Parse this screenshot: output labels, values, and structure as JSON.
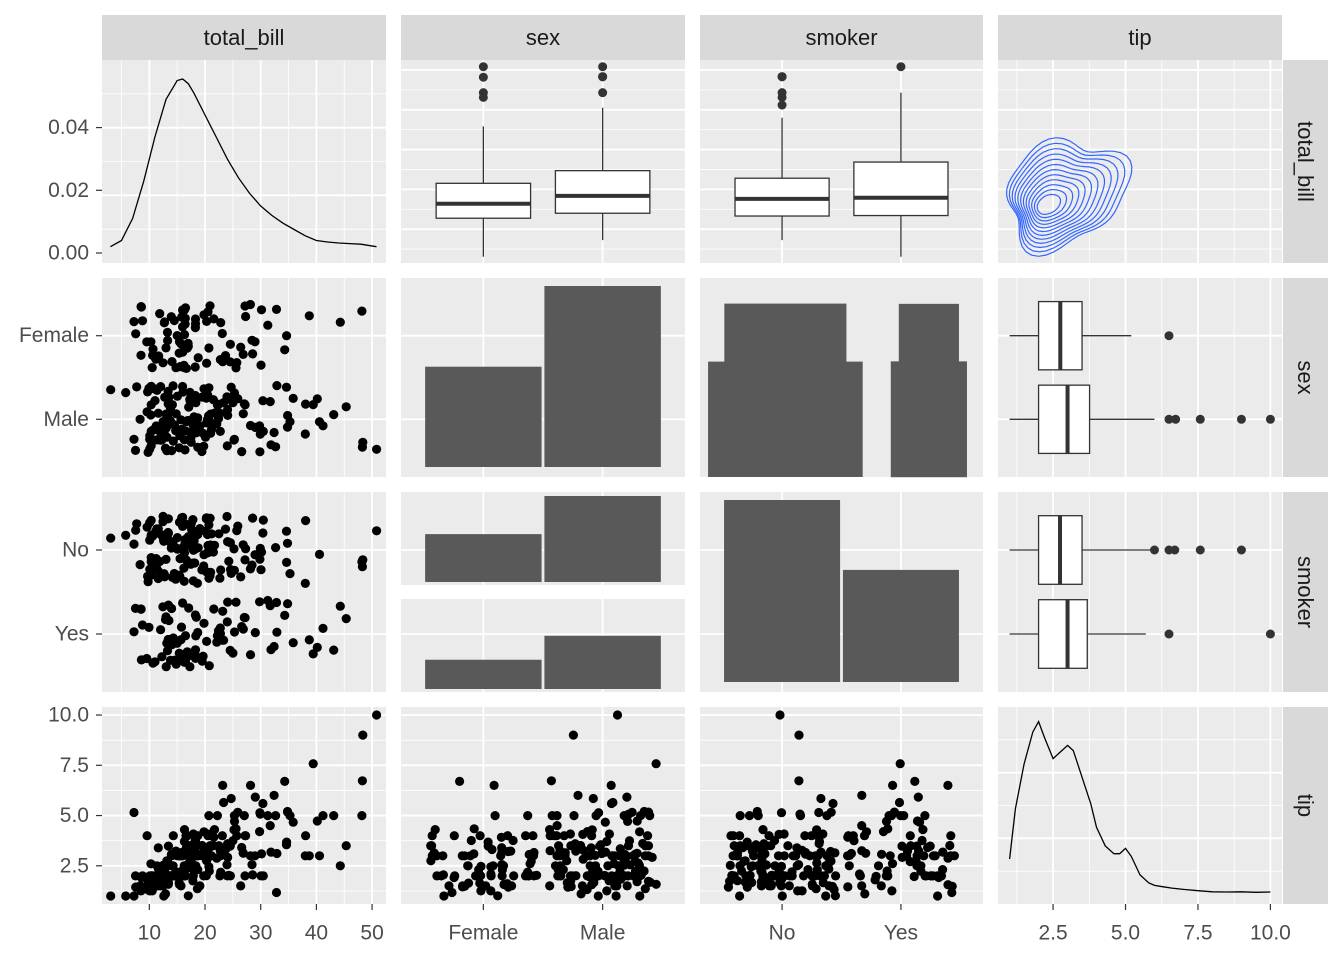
{
  "chart_data": {
    "type": "scatter",
    "title": "",
    "variables": [
      "total_bill",
      "sex",
      "smoker",
      "tip"
    ],
    "columns": [
      "total_bill",
      "sex",
      "smoker",
      "tip"
    ],
    "rows": [
      "total_bill",
      "sex",
      "smoker",
      "tip"
    ],
    "colors": {
      "panel_bg": "#ebebeb",
      "grid_major": "#ffffff",
      "strip_bg": "#d9d9d9",
      "bar_fill": "#595959",
      "point": "#000000",
      "contour": "#3366ff",
      "box_fill": "#ffffff",
      "line": "#000000"
    },
    "axes": {
      "total_bill": {
        "range": [
          1.5,
          52.5
        ],
        "ticks": [
          10,
          20,
          30,
          40,
          50
        ],
        "tick_labels": [
          "10",
          "20",
          "30",
          "40",
          "50"
        ]
      },
      "tip": {
        "range": [
          0.6,
          10.4
        ],
        "ticks": [
          2.5,
          5.0,
          7.5,
          10.0
        ],
        "tick_labels": [
          "2.5",
          "5.0",
          "7.5",
          "10.0"
        ]
      },
      "sex": {
        "categories": [
          "Female",
          "Male"
        ]
      },
      "smoker": {
        "categories": [
          "No",
          "Yes"
        ]
      },
      "density_y": {
        "ticks": [
          0.0,
          0.02,
          0.04
        ],
        "tick_labels": [
          "0.00",
          "0.02",
          "0.04"
        ]
      }
    },
    "panels": {
      "total_bill_density": {
        "type": "line",
        "x": [
          3,
          5,
          7,
          9,
          11,
          13,
          15,
          16,
          17,
          18,
          20,
          22,
          24,
          26,
          28,
          30,
          32,
          34,
          36,
          38,
          40,
          42,
          44,
          46,
          48,
          50.8
        ],
        "y": [
          0.002,
          0.004,
          0.011,
          0.023,
          0.037,
          0.049,
          0.055,
          0.0555,
          0.054,
          0.051,
          0.044,
          0.037,
          0.03,
          0.024,
          0.019,
          0.015,
          0.012,
          0.0095,
          0.0075,
          0.0055,
          0.004,
          0.0035,
          0.0032,
          0.003,
          0.0028,
          0.002
        ]
      },
      "total_bill_by_sex_box": {
        "type": "box",
        "groups": [
          {
            "name": "Female",
            "min": 3.07,
            "q1": 12.75,
            "median": 16.4,
            "q3": 21.52,
            "max": 35.83,
            "outliers": [
              44.3,
              43.11,
              48.17,
              50.81
            ]
          },
          {
            "name": "Male",
            "min": 7.25,
            "q1": 14.0,
            "median": 18.35,
            "q3": 24.7,
            "max": 40.5,
            "outliers": [
              48.27,
              48.33,
              50.81,
              44.3
            ]
          }
        ]
      },
      "total_bill_by_smoker_box": {
        "type": "box",
        "groups": [
          {
            "name": "No",
            "min": 7.25,
            "q1": 13.3,
            "median": 17.6,
            "q3": 22.8,
            "max": 38.0,
            "outliers": [
              43.11,
              41.19,
              44.3,
              48.27,
              48.33
            ]
          },
          {
            "name": "Yes",
            "min": 3.07,
            "q1": 13.42,
            "median": 17.9,
            "q3": 26.86,
            "max": 44.3,
            "outliers": [
              50.81
            ]
          }
        ]
      },
      "tip_by_sex_box": {
        "type": "box",
        "groups": [
          {
            "name": "Female",
            "min": 1.0,
            "q1": 2.0,
            "median": 2.75,
            "q3": 3.5,
            "max": 5.2,
            "outliers": [
              6.5
            ]
          },
          {
            "name": "Male",
            "min": 1.0,
            "q1": 2.0,
            "median": 3.0,
            "q3": 3.76,
            "max": 6.0,
            "outliers": [
              6.5,
              6.73,
              7.58,
              9.0,
              10.0
            ]
          }
        ]
      },
      "tip_by_smoker_box": {
        "type": "box",
        "groups": [
          {
            "name": "No",
            "min": 1.0,
            "q1": 2.0,
            "median": 2.74,
            "q3": 3.5,
            "max": 5.9,
            "outliers": [
              6.0,
              6.5,
              6.7,
              7.58,
              9.0
            ]
          },
          {
            "name": "Yes",
            "min": 1.0,
            "q1": 2.0,
            "median": 3.0,
            "q3": 3.68,
            "max": 5.7,
            "outliers": [
              6.5,
              10.0
            ]
          }
        ]
      },
      "sex_counts": {
        "type": "bar",
        "categories": [
          "Female",
          "Male"
        ],
        "values": [
          87,
          157
        ]
      },
      "smoker_counts": {
        "type": "bar",
        "categories": [
          "No",
          "Yes"
        ],
        "values": [
          151,
          93
        ]
      },
      "sex_smoker_counts": {
        "type": "bar",
        "cells": [
          {
            "sex": "Female",
            "smoker": "No",
            "value": 54
          },
          {
            "sex": "Male",
            "smoker": "No",
            "value": 97
          },
          {
            "sex": "Female",
            "smoker": "Yes",
            "value": 33
          },
          {
            "sex": "Male",
            "smoker": "Yes",
            "value": 60
          }
        ]
      },
      "tip_density": {
        "type": "line",
        "x": [
          1.0,
          1.2,
          1.5,
          1.8,
          2.0,
          2.2,
          2.5,
          2.8,
          3.0,
          3.2,
          3.5,
          3.8,
          4.0,
          4.3,
          4.6,
          4.8,
          5.0,
          5.2,
          5.5,
          5.8,
          6.0,
          6.3,
          6.6,
          7.0,
          7.5,
          8.0,
          8.5,
          9.0,
          9.5,
          10.0
        ],
        "y": [
          0.14,
          0.33,
          0.5,
          0.62,
          0.66,
          0.6,
          0.52,
          0.55,
          0.57,
          0.55,
          0.45,
          0.35,
          0.26,
          0.19,
          0.16,
          0.16,
          0.18,
          0.15,
          0.08,
          0.05,
          0.04,
          0.035,
          0.03,
          0.025,
          0.02,
          0.016,
          0.015,
          0.016,
          0.014,
          0.015
        ]
      },
      "tip_vs_total_bill_contour": {
        "type": "contour",
        "center": [
          16.0,
          2.6
        ],
        "levels": 12
      },
      "scatter": {
        "total_bill": [
          16.99,
          10.34,
          21.01,
          23.68,
          24.59,
          25.29,
          8.77,
          26.88,
          15.04,
          14.78,
          10.27,
          35.26,
          15.42,
          18.43,
          14.83,
          21.58,
          10.33,
          16.29,
          16.97,
          20.65,
          17.92,
          20.29,
          15.77,
          39.42,
          19.82,
          17.81,
          13.37,
          12.69,
          21.7,
          19.65,
          9.55,
          18.35,
          15.06,
          20.69,
          17.78,
          24.06,
          16.31,
          16.93,
          18.69,
          31.27,
          16.04,
          17.46,
          13.94,
          9.68,
          30.4,
          18.29,
          22.23,
          32.4,
          28.55,
          18.04,
          12.54,
          10.29,
          34.81,
          9.94,
          25.56,
          19.49,
          38.01,
          26.41,
          11.24,
          48.27,
          20.29,
          13.81,
          11.02,
          18.29,
          17.59,
          20.08,
          16.45,
          3.07,
          20.23,
          15.01,
          12.02,
          17.07,
          26.86,
          25.28,
          14.73,
          10.51,
          17.92,
          27.2,
          22.76,
          17.29,
          19.44,
          16.66,
          10.07,
          32.68,
          15.98,
          34.83,
          13.03,
          18.28,
          24.71,
          21.16,
          28.97,
          22.49,
          5.75,
          16.32,
          22.75,
          40.17,
          27.28,
          12.03,
          21.01,
          12.46,
          11.35,
          15.38,
          44.3,
          22.42,
          20.92,
          15.36,
          20.49,
          25.21,
          18.24,
          14.31,
          14.0,
          7.25,
          38.07,
          23.95,
          25.71,
          17.31,
          29.93,
          10.65,
          12.43,
          24.08,
          11.69,
          13.42,
          14.26,
          15.95,
          12.48,
          29.8,
          8.52,
          14.52,
          11.38,
          22.82,
          19.08,
          20.27,
          11.17,
          12.26,
          18.26,
          8.51,
          10.33,
          14.15,
          16.0,
          13.16,
          17.47,
          34.3,
          41.19,
          27.05,
          16.43,
          8.35,
          18.64,
          11.87,
          9.78,
          7.51,
          14.07,
          13.13,
          17.26,
          24.55,
          19.77,
          29.85,
          48.17,
          25.0,
          13.39,
          16.49,
          21.5,
          12.66,
          16.21,
          13.81,
          17.51,
          24.52,
          20.76,
          31.71,
          10.59,
          10.63,
          50.81,
          15.81,
          7.25,
          31.85,
          16.82,
          32.9,
          17.89,
          14.48,
          9.6,
          34.63,
          34.65,
          23.33,
          45.35,
          23.17,
          40.55,
          20.69,
          20.9,
          30.46,
          18.15,
          23.1,
          15.69,
          19.81,
          28.44,
          15.48,
          16.58,
          7.56,
          10.34,
          43.11,
          13.0,
          13.51,
          18.71,
          12.74,
          13.0,
          16.4,
          20.53,
          16.47,
          26.59,
          38.73,
          24.27,
          12.76,
          30.06,
          25.89,
          48.33,
          13.27,
          28.17,
          12.9,
          28.15,
          11.59,
          7.74,
          30.14,
          12.16,
          13.42,
          8.58,
          15.98,
          13.42,
          16.27,
          10.09,
          20.45,
          13.28,
          22.12,
          24.01,
          15.69,
          11.61,
          10.77,
          15.53,
          10.07,
          12.6,
          32.83,
          35.83,
          29.03,
          27.18,
          22.67,
          17.82,
          18.78
        ],
        "tip": [
          1.01,
          1.66,
          3.5,
          3.31,
          3.61,
          4.71,
          2.0,
          3.12,
          1.96,
          3.23,
          1.71,
          5.0,
          1.57,
          3.0,
          3.02,
          3.92,
          1.67,
          3.71,
          3.5,
          3.35,
          4.08,
          2.75,
          2.23,
          7.58,
          3.18,
          2.34,
          2.0,
          2.0,
          4.3,
          3.0,
          1.45,
          2.5,
          3.0,
          2.45,
          3.27,
          3.6,
          2.0,
          3.07,
          2.31,
          5.0,
          2.24,
          2.54,
          3.06,
          1.32,
          5.6,
          3.0,
          5.0,
          6.0,
          2.05,
          3.0,
          2.5,
          2.6,
          5.2,
          1.56,
          4.34,
          3.51,
          3.0,
          1.5,
          1.76,
          6.73,
          3.21,
          2.0,
          1.98,
          3.76,
          2.64,
          3.15,
          2.47,
          1.0,
          2.01,
          2.09,
          1.97,
          3.0,
          3.14,
          5.0,
          2.2,
          1.25,
          3.08,
          4.0,
          3.0,
          2.71,
          3.0,
          3.4,
          1.83,
          5.0,
          2.03,
          5.17,
          2.0,
          4.0,
          5.85,
          3.0,
          3.0,
          3.5,
          1.0,
          4.3,
          3.25,
          4.73,
          4.0,
          1.5,
          3.0,
          1.5,
          2.5,
          3.0,
          2.5,
          3.48,
          4.08,
          1.64,
          4.06,
          4.29,
          3.76,
          4.0,
          3.0,
          1.0,
          4.0,
          2.55,
          4.0,
          3.5,
          5.07,
          1.5,
          1.8,
          2.92,
          2.31,
          1.68,
          2.5,
          2.0,
          2.52,
          4.2,
          1.48,
          2.0,
          2.0,
          2.18,
          1.5,
          2.83,
          1.5,
          2.0,
          3.25,
          1.25,
          2.0,
          2.0,
          2.0,
          2.75,
          3.5,
          6.7,
          5.0,
          5.0,
          2.3,
          1.5,
          1.36,
          1.63,
          1.73,
          2.0,
          2.5,
          2.0,
          2.74,
          2.0,
          2.0,
          5.14,
          5.0,
          3.75,
          2.61,
          2.0,
          3.5,
          2.5,
          2.0,
          2.0,
          3.0,
          3.48,
          2.24,
          4.5,
          1.61,
          2.0,
          10.0,
          3.16,
          5.15,
          3.18,
          4.0,
          3.11,
          2.0,
          2.0,
          4.0,
          3.55,
          3.68,
          5.65,
          3.5,
          6.5,
          3.0,
          5.0,
          3.5,
          2.0,
          3.5,
          4.0,
          1.5,
          4.19,
          2.56,
          2.02,
          4.0,
          1.44,
          2.0,
          5.0,
          2.0,
          2.0,
          4.0,
          2.01,
          2.0,
          2.5,
          4.0,
          3.23,
          3.41,
          3.0,
          2.03,
          2.23,
          2.0,
          5.16,
          9.0,
          2.5,
          6.5,
          1.1,
          3.0,
          1.5,
          1.44,
          3.09,
          2.2,
          3.48,
          1.92,
          3.0,
          1.58,
          2.5,
          2.0,
          3.0,
          2.72,
          2.88,
          2.0,
          3.0,
          3.39,
          1.47,
          3.0,
          1.25,
          1.0,
          1.17,
          4.67,
          5.92,
          2.0,
          2.0,
          1.75,
          3.0
        ]
      }
    }
  }
}
